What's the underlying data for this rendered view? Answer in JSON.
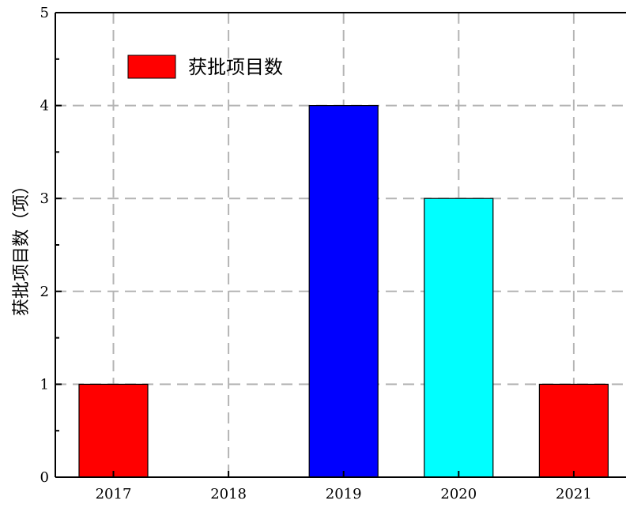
{
  "chart_data": {
    "type": "bar",
    "categories": [
      "2017",
      "2018",
      "2019",
      "2020",
      "2021"
    ],
    "series": [
      {
        "name": "获批项目数",
        "values": [
          1,
          0,
          4,
          3,
          1
        ]
      }
    ],
    "bar_colors": [
      "#ff0000",
      "#ff0000",
      "#0000ff",
      "#00ffff",
      "#ff0000"
    ],
    "legend_color": "#ff0000",
    "title": "",
    "xlabel": "",
    "ylabel": "获批项目数（项）",
    "ylim": [
      0,
      5
    ],
    "yticks": [
      "0",
      "1",
      "2",
      "3",
      "4",
      "5"
    ],
    "grid": true,
    "grid_style": "dashed",
    "legend_position": "top-left"
  }
}
